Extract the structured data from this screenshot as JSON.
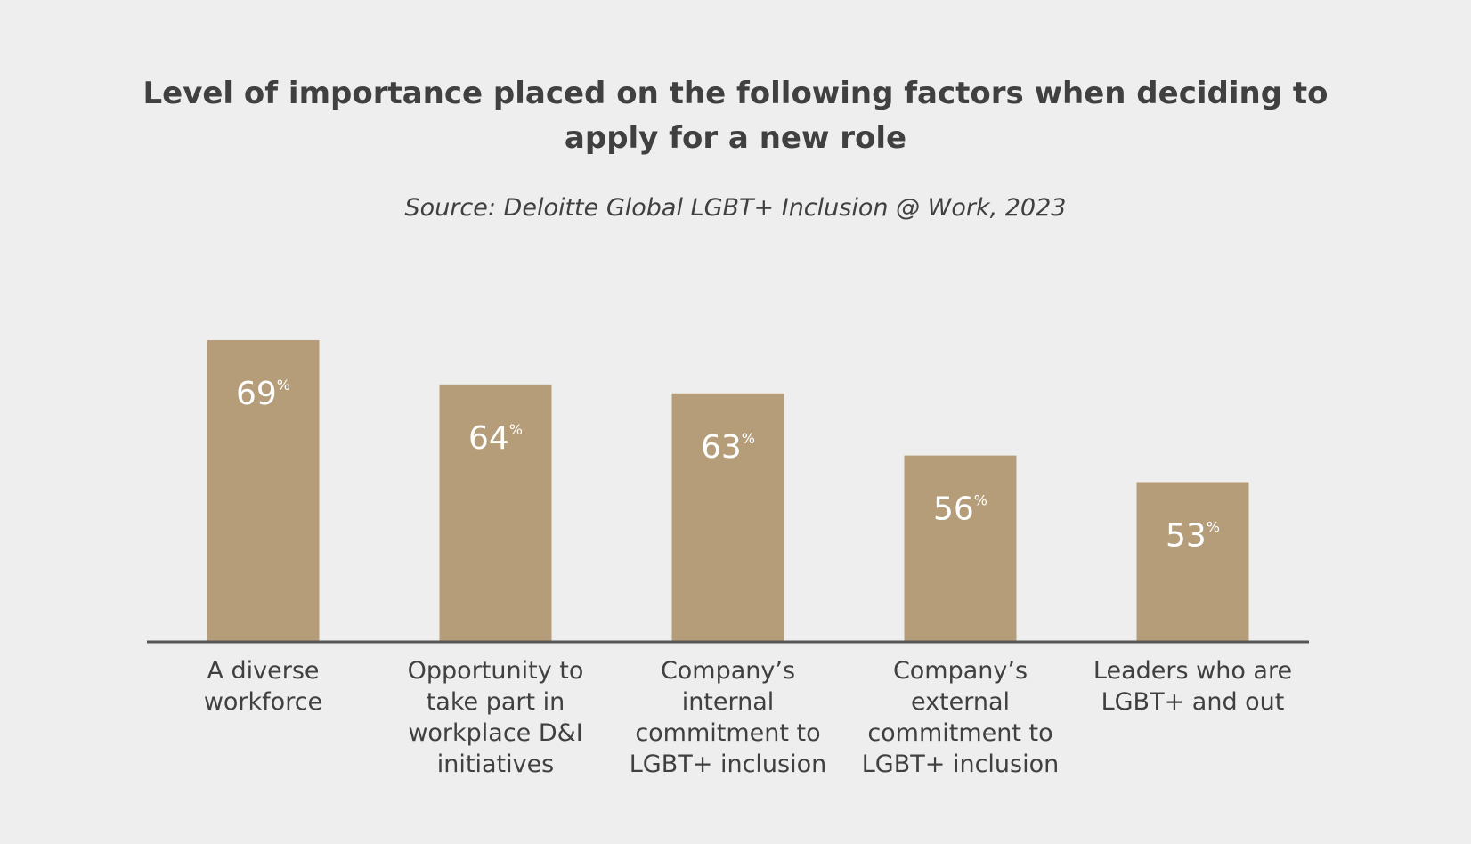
{
  "chart_data": {
    "type": "bar",
    "title": "Level of importance placed on the following factors when deciding to apply for a new role",
    "subtitle": "Source: Deloitte Global LGBT+ Inclusion @ Work, 2023",
    "categories": [
      "A diverse workforce",
      "Opportunity to take part in workplace D&I initiatives",
      "Company’s internal commitment to LGBT+ inclusion",
      "Company’s external commitment to LGBT+ inclusion",
      "Leaders who are LGBT+ and out"
    ],
    "values": [
      69,
      64,
      63,
      56,
      53
    ],
    "value_labels": [
      "69%",
      "64%",
      "63%",
      "56%",
      "53%"
    ],
    "color": "#b59d79",
    "ylim": [
      35,
      70
    ]
  }
}
